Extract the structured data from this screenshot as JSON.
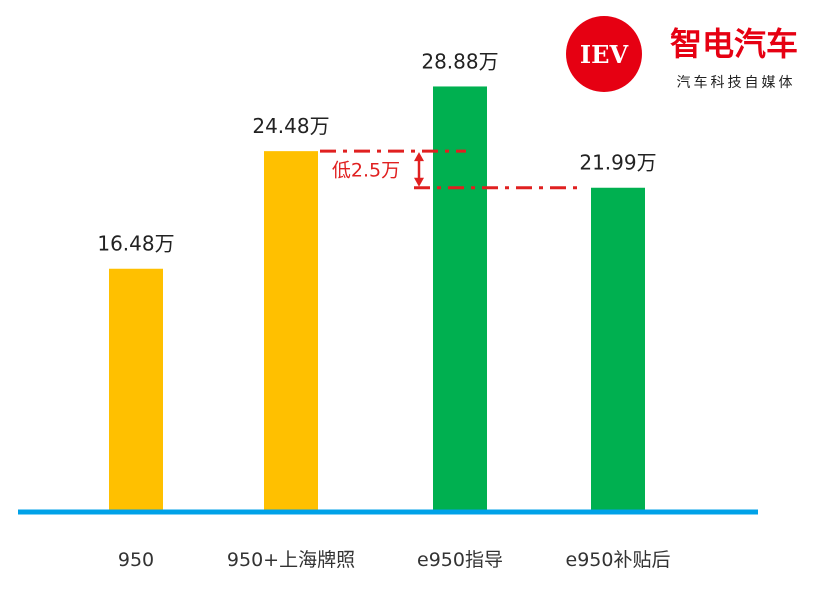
{
  "chart_data": {
    "type": "bar",
    "categories": [
      "950",
      "950+上海牌照",
      "e950指导",
      "e950补贴后"
    ],
    "values": [
      16.48,
      24.48,
      28.88,
      21.99
    ],
    "value_labels": [
      "16.48万",
      "24.48万",
      "28.88万",
      "21.99万"
    ],
    "colors": [
      "#FFC000",
      "#FFC000",
      "#00B050",
      "#00B050"
    ],
    "axis_color": "#00A2E8",
    "ylim": [
      0,
      32
    ],
    "grid": false,
    "annotation": {
      "text": "低2.5万",
      "from_value": 24.48,
      "to_value": 21.99,
      "color": "#E02020"
    }
  },
  "brand": {
    "logo_text": "IEV",
    "name": "智电汽车",
    "tagline": "汽车科技自媒体",
    "color": "#E60012"
  }
}
